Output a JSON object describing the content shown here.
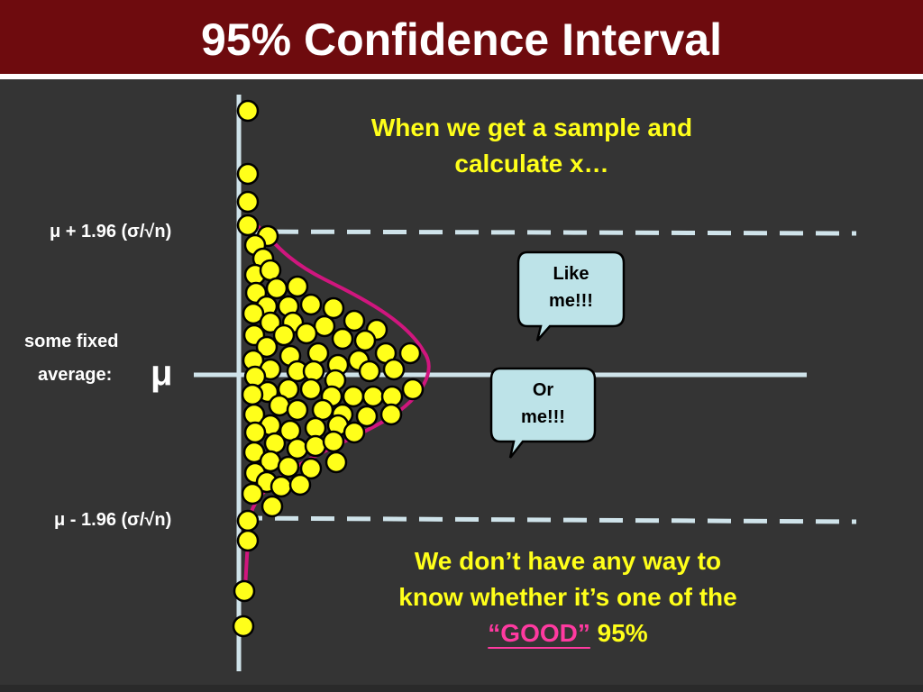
{
  "title": "95% Confidence Interval",
  "labels": {
    "upper": "μ + 1.96 (σ/√n)",
    "lower": "μ - 1.96 (σ/√n)",
    "fixed_line1": "some fixed",
    "fixed_line2": "average:",
    "mu": "μ"
  },
  "captions": {
    "top_line1": "When we get a sample and",
    "top_line2": "calculate x…",
    "bottom_line1": "We don’t have any way to",
    "bottom_line2": "know whether it’s one of the",
    "bottom_good": "“GOOD”",
    "bottom_tail": " 95%"
  },
  "bubbles": {
    "like_line1": "Like",
    "like_line2": "me!!!",
    "or_line1": "Or",
    "or_line2": "me!!!"
  },
  "colors": {
    "header_bg": "#6e0b0e",
    "background": "#343434",
    "dot_fill": "#ffff1a",
    "curve": "#d0167e",
    "axis": "#cfe3ea",
    "bubble_fill": "#bde3e8",
    "caption_text": "#ffff1a",
    "good_text": "#ff3aa0"
  }
}
